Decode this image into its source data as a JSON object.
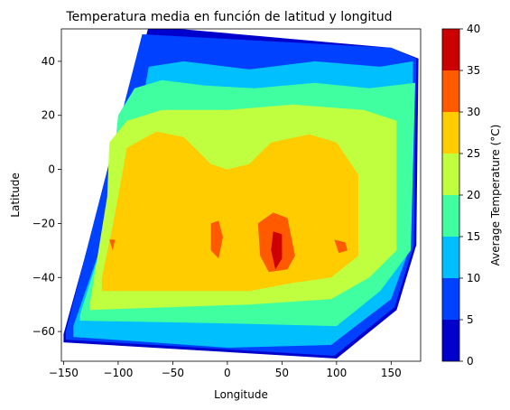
{
  "chart_data": {
    "type": "contourf",
    "title": "Temperatura media en función de latitud y longitud",
    "xlabel": "Longitude",
    "ylabel": "Latitude",
    "xlim": [
      -152,
      177
    ],
    "ylim": [
      -71,
      52
    ],
    "x_ticks": [
      -150,
      -100,
      -50,
      0,
      50,
      100,
      150
    ],
    "y_ticks": [
      -60,
      -40,
      -20,
      0,
      20,
      40
    ],
    "grid": false,
    "colorbar": {
      "label": "Average Temperature (°C)",
      "levels": [
        0,
        5,
        10,
        15,
        20,
        25,
        30,
        35,
        40
      ],
      "colors": [
        "#0000cd",
        "#0040ff",
        "#00bfff",
        "#40ffa0",
        "#bfff40",
        "#ffcc00",
        "#ff5a00",
        "#cc0000"
      ]
    },
    "regions": [
      {
        "name": "domain",
        "level": 0,
        "poly": [
          [
            -150,
            -61
          ],
          [
            -72,
            53
          ],
          [
            150,
            45
          ],
          [
            175,
            41
          ],
          [
            173,
            -28
          ],
          [
            155,
            -52
          ],
          [
            100,
            -70
          ],
          [
            -150,
            -64
          ]
        ]
      },
      {
        "name": "band-5-10",
        "level": 1,
        "poly": [
          [
            -148,
            -60
          ],
          [
            -78,
            50
          ],
          [
            150,
            45
          ],
          [
            173,
            41
          ],
          [
            171,
            -28
          ],
          [
            153,
            -51
          ],
          [
            98,
            -69
          ],
          [
            -148,
            -63
          ]
        ]
      },
      {
        "name": "band-10-15",
        "level": 2,
        "poly": [
          [
            -141,
            -58
          ],
          [
            -100,
            -10
          ],
          [
            -80,
            20
          ],
          [
            -72,
            38
          ],
          [
            -40,
            40
          ],
          [
            20,
            37
          ],
          [
            80,
            40
          ],
          [
            140,
            38
          ],
          [
            170,
            40
          ],
          [
            168,
            -28
          ],
          [
            150,
            -48
          ],
          [
            95,
            -65
          ],
          [
            0,
            -66
          ],
          [
            -141,
            -62
          ]
        ]
      },
      {
        "name": "band-15-20",
        "level": 3,
        "poly": [
          [
            -135,
            -54
          ],
          [
            -115,
            -28
          ],
          [
            -105,
            0
          ],
          [
            -100,
            20
          ],
          [
            -85,
            30
          ],
          [
            -60,
            33
          ],
          [
            -20,
            31
          ],
          [
            25,
            30
          ],
          [
            80,
            32
          ],
          [
            130,
            30
          ],
          [
            172,
            32
          ],
          [
            168,
            -30
          ],
          [
            140,
            -45
          ],
          [
            100,
            -58
          ],
          [
            0,
            -57
          ],
          [
            -135,
            -56
          ]
        ]
      },
      {
        "name": "band-20-25",
        "level": 4,
        "poly": [
          [
            -126,
            -50
          ],
          [
            -118,
            -30
          ],
          [
            -110,
            -10
          ],
          [
            -108,
            10
          ],
          [
            -92,
            18
          ],
          [
            -60,
            22
          ],
          [
            0,
            22
          ],
          [
            60,
            24
          ],
          [
            125,
            22
          ],
          [
            155,
            18
          ],
          [
            155,
            -30
          ],
          [
            130,
            -40
          ],
          [
            95,
            -48
          ],
          [
            20,
            -50
          ],
          [
            -126,
            -52
          ]
        ]
      },
      {
        "name": "band-25-30",
        "level": 5,
        "poly": [
          [
            -115,
            -40
          ],
          [
            -107,
            -25
          ],
          [
            -100,
            -10
          ],
          [
            -92,
            8
          ],
          [
            -65,
            14
          ],
          [
            -40,
            12
          ],
          [
            -15,
            2
          ],
          [
            0,
            0
          ],
          [
            20,
            2
          ],
          [
            40,
            10
          ],
          [
            75,
            13
          ],
          [
            100,
            10
          ],
          [
            120,
            -2
          ],
          [
            120,
            -32
          ],
          [
            95,
            -40
          ],
          [
            60,
            -42
          ],
          [
            20,
            -45
          ],
          [
            -115,
            -45
          ]
        ]
      },
      {
        "name": "hot-africa",
        "level": 6,
        "poly": [
          [
            28,
            -20
          ],
          [
            42,
            -16
          ],
          [
            55,
            -18
          ],
          [
            62,
            -32
          ],
          [
            55,
            -37
          ],
          [
            38,
            -38
          ],
          [
            30,
            -32
          ]
        ]
      },
      {
        "name": "hot-sw",
        "level": 6,
        "poly": [
          [
            -15,
            -20
          ],
          [
            -8,
            -19
          ],
          [
            -4,
            -25
          ],
          [
            -8,
            -33
          ],
          [
            -15,
            -30
          ]
        ]
      },
      {
        "name": "hot-e",
        "level": 6,
        "poly": [
          [
            98,
            -26
          ],
          [
            108,
            -27
          ],
          [
            110,
            -30
          ],
          [
            102,
            -31
          ]
        ]
      },
      {
        "name": "hot-w",
        "level": 6,
        "poly": [
          [
            -108,
            -26
          ],
          [
            -103,
            -26
          ],
          [
            -105,
            -30
          ]
        ]
      },
      {
        "name": "peak",
        "level": 7,
        "poly": [
          [
            42,
            -23
          ],
          [
            50,
            -24
          ],
          [
            50,
            -33
          ],
          [
            44,
            -37
          ],
          [
            40,
            -30
          ]
        ]
      }
    ]
  }
}
